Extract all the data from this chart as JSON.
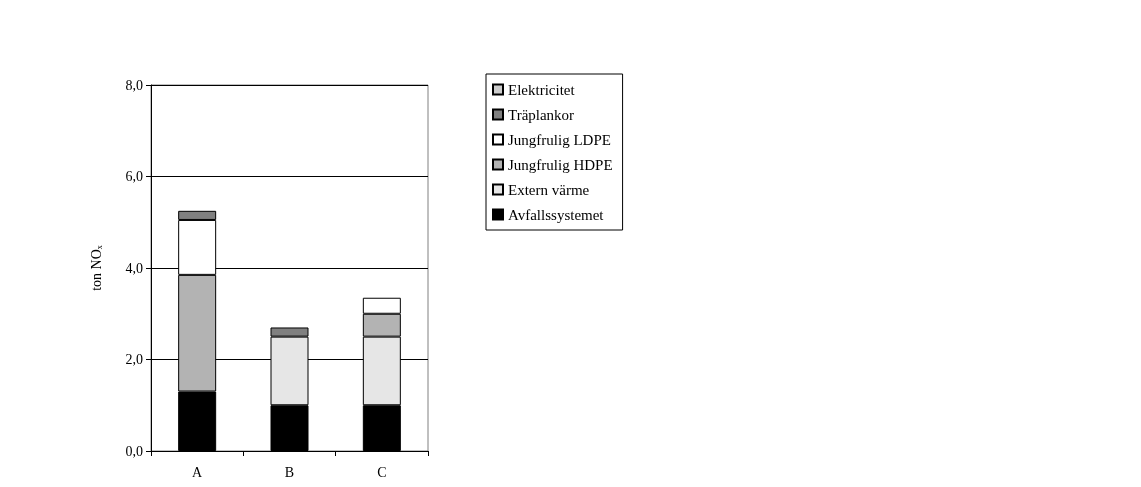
{
  "chart_data": {
    "type": "bar",
    "stacked": true,
    "ylabel": "ton NOₓ",
    "categories": [
      "A",
      "B",
      "C"
    ],
    "series": [
      {
        "name": "Avfallssystemet",
        "color": "#000000",
        "values": [
          1.3,
          1.0,
          1.0
        ]
      },
      {
        "name": "Extern värme",
        "color": "#e6e6e6",
        "values": [
          null,
          1.5,
          1.5
        ]
      },
      {
        "name": "Jungfrulig HDPE",
        "color": "#b3b3b3",
        "values": [
          2.55,
          null,
          0.5
        ]
      },
      {
        "name": "Jungfrulig LDPE",
        "color": "#ffffff",
        "values": [
          1.2,
          null,
          0.35
        ]
      },
      {
        "name": "Träplankor",
        "color": "#808080",
        "values": [
          0.2,
          0.2,
          null
        ]
      },
      {
        "name": "Elektricitet",
        "color": "#cccccc",
        "values": [
          null,
          null,
          null
        ]
      }
    ],
    "ylim": [
      0,
      8
    ],
    "yticks": [
      {
        "value": 0,
        "label": "0,0"
      },
      {
        "value": 2,
        "label": "2,0"
      },
      {
        "value": 4,
        "label": "4,0"
      },
      {
        "value": 6,
        "label": "6,0"
      },
      {
        "value": 8,
        "label": "8,0"
      }
    ],
    "grid": "y",
    "legend": "right"
  }
}
